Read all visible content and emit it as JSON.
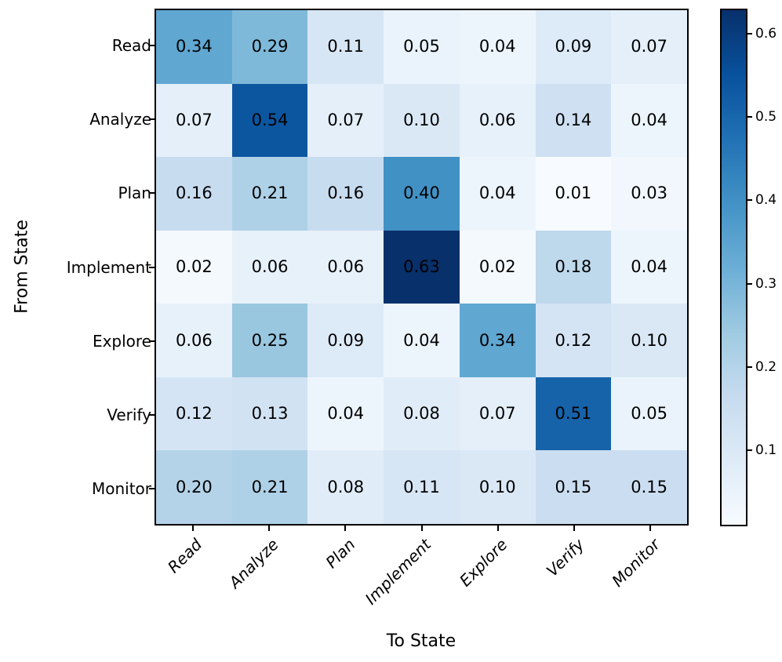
{
  "chart_data": {
    "type": "heatmap",
    "title": "",
    "xlabel": "To State",
    "ylabel": "From State",
    "x_categories": [
      "Read",
      "Analyze",
      "Plan",
      "Implement",
      "Explore",
      "Verify",
      "Monitor"
    ],
    "y_categories": [
      "Read",
      "Analyze",
      "Plan",
      "Implement",
      "Explore",
      "Verify",
      "Monitor"
    ],
    "matrix": [
      [
        0.34,
        0.29,
        0.11,
        0.05,
        0.04,
        0.09,
        0.07
      ],
      [
        0.07,
        0.54,
        0.07,
        0.1,
        0.06,
        0.14,
        0.04
      ],
      [
        0.16,
        0.21,
        0.16,
        0.4,
        0.04,
        0.01,
        0.03
      ],
      [
        0.02,
        0.06,
        0.06,
        0.63,
        0.02,
        0.18,
        0.04
      ],
      [
        0.06,
        0.25,
        0.09,
        0.04,
        0.34,
        0.12,
        0.1
      ],
      [
        0.12,
        0.13,
        0.04,
        0.08,
        0.07,
        0.51,
        0.05
      ],
      [
        0.2,
        0.21,
        0.08,
        0.11,
        0.1,
        0.15,
        0.15
      ]
    ],
    "value_decimals": 2,
    "colormap": "Blues",
    "vmin": 0.01,
    "vmax": 0.63,
    "colorbar_ticks": [
      0.1,
      0.2,
      0.3,
      0.4,
      0.5,
      0.6
    ],
    "colorbar_tick_decimals": 1,
    "annotation_color": "#000000",
    "grid": false,
    "legend_position": "colorbar-right"
  },
  "colors": {
    "background": "#ffffff",
    "axis": "#000000",
    "blues_stops": [
      "#f7fbff",
      "#deebf7",
      "#c6dbef",
      "#9ecae1",
      "#6baed6",
      "#4292c6",
      "#2171b5",
      "#08519c",
      "#08306b"
    ]
  }
}
